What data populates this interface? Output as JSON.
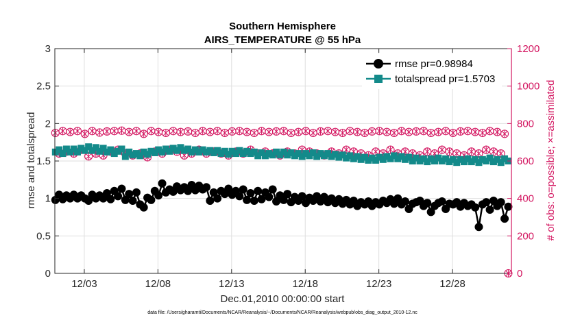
{
  "colors": {
    "rmse": "#000000",
    "spread": "#138a8a",
    "obs": "#d3145f",
    "axis": "#262626",
    "grid": "#dedede"
  },
  "chart_data": {
    "type": "line",
    "title_line1": "Southern Hemisphere",
    "title_line2": "AIRS_TEMPERATURE @ 55 hPa",
    "xlabel": "Dec.01,2010 00:00:00 start",
    "ylabel_left": "rmse and totalspread",
    "ylabel_right": "# of obs: o=possible; ×=assimilated",
    "footnote": "data file: /Users/gharamti/Documents/NCAR/Reanalysis/~/Documents/NCAR/Reanalysis/webpub/obs_diag_output_2010-12.nc",
    "xlim": [
      1,
      32
    ],
    "ylim_left": [
      0,
      3
    ],
    "ylim_right": [
      0,
      1200
    ],
    "x_ticks": [
      3,
      8,
      13,
      18,
      23,
      28
    ],
    "x_tick_labels": [
      "12/03",
      "12/08",
      "12/13",
      "12/18",
      "12/23",
      "12/28"
    ],
    "y_ticks_left": [
      0,
      0.5,
      1,
      1.5,
      2,
      2.5,
      3
    ],
    "y_tick_labels_left": [
      "0",
      "0.5",
      "1",
      "1.5",
      "2",
      "2.5",
      "3"
    ],
    "y_ticks_right": [
      0,
      200,
      400,
      600,
      800,
      1000,
      1200
    ],
    "y_tick_labels_right": [
      "0",
      "200",
      "400",
      "600",
      "800",
      "1000",
      "1200"
    ],
    "series": [
      {
        "name": "rmse",
        "label": "rmse pr=0.98984",
        "values": [
          0.98,
          1.05,
          0.99,
          1.04,
          1.0,
          1.05,
          1.0,
          1.04,
          1.0,
          0.97,
          1.05,
          1.0,
          1.04,
          1.0,
          1.07,
          0.99,
          1.1,
          1.03,
          1.13,
          0.98,
          1.06,
          0.97,
          1.08,
          0.92,
          0.88,
          1.01,
          0.98,
          1.1,
          1.04,
          1.2,
          1.08,
          1.12,
          1.09,
          1.16,
          1.11,
          1.15,
          1.1,
          1.18,
          1.11,
          1.17,
          1.12,
          1.15,
          0.97,
          1.08,
          1.0,
          1.1,
          1.06,
          1.13,
          1.05,
          1.1,
          1.03,
          1.12,
          0.98,
          1.07,
          0.97,
          1.1,
          0.99,
          1.08,
          1.02,
          1.12,
          0.96,
          1.04,
          0.98,
          1.06,
          0.95,
          1.02,
          0.97,
          1.03,
          0.94,
          1.01,
          0.97,
          1.03,
          0.96,
          1.02,
          0.95,
          1.0,
          0.94,
          0.99,
          0.93,
          0.98,
          0.92,
          0.97,
          0.9,
          0.95,
          0.92,
          0.96,
          0.9,
          0.95,
          0.92,
          0.97,
          0.94,
          0.99,
          0.93,
          1.0,
          0.92,
          0.96,
          0.86,
          0.93,
          0.95,
          0.97,
          0.9,
          0.94,
          0.82,
          0.9,
          0.94,
          0.96,
          0.86,
          0.93,
          0.92,
          0.95,
          0.89,
          0.94,
          0.9,
          0.92,
          0.88,
          0.62,
          0.92,
          0.95,
          0.85,
          0.97,
          0.9,
          0.95,
          0.73,
          0.89
        ]
      },
      {
        "name": "totalspread",
        "label": "totalspread pr=1.5703",
        "values": [
          1.62,
          1.65,
          1.6,
          1.66,
          1.62,
          1.66,
          1.62,
          1.67,
          1.64,
          1.69,
          1.64,
          1.68,
          1.63,
          1.67,
          1.62,
          1.65,
          1.6,
          1.63,
          1.66,
          1.56,
          1.62,
          1.58,
          1.6,
          1.57,
          1.62,
          1.59,
          1.63,
          1.61,
          1.65,
          1.62,
          1.66,
          1.63,
          1.67,
          1.64,
          1.68,
          1.64,
          1.66,
          1.62,
          1.65,
          1.62,
          1.65,
          1.62,
          1.64,
          1.61,
          1.64,
          1.6,
          1.63,
          1.59,
          1.63,
          1.6,
          1.64,
          1.6,
          1.63,
          1.6,
          1.62,
          1.57,
          1.61,
          1.57,
          1.6,
          1.58,
          1.62,
          1.58,
          1.62,
          1.58,
          1.61,
          1.57,
          1.6,
          1.56,
          1.6,
          1.57,
          1.61,
          1.56,
          1.6,
          1.57,
          1.6,
          1.56,
          1.59,
          1.55,
          1.58,
          1.54,
          1.57,
          1.53,
          1.56,
          1.52,
          1.55,
          1.51,
          1.54,
          1.51,
          1.55,
          1.52,
          1.56,
          1.53,
          1.57,
          1.53,
          1.56,
          1.52,
          1.55,
          1.5,
          1.54,
          1.5,
          1.53,
          1.49,
          1.53,
          1.5,
          1.54,
          1.5,
          1.53,
          1.49,
          1.52,
          1.48,
          1.52,
          1.49,
          1.53,
          1.49,
          1.52,
          1.48,
          1.52,
          1.5,
          1.54,
          1.49,
          1.52,
          1.48,
          1.53,
          1.5
        ]
      },
      {
        "name": "possible_obs",
        "label": "o=possible",
        "values": [
          750,
          640,
          760,
          650,
          755,
          640,
          760,
          660,
          745,
          625,
          760,
          640,
          752,
          630,
          758,
          650,
          760,
          660,
          762,
          640,
          755,
          630,
          760,
          640,
          745,
          620,
          760,
          650,
          755,
          640,
          750,
          660,
          760,
          650,
          755,
          630,
          758,
          640,
          750,
          660,
          760,
          640,
          755,
          650,
          760,
          640,
          750,
          630,
          758,
          650,
          760,
          640,
          755,
          660,
          750,
          640,
          760,
          650,
          755,
          640,
          758,
          630,
          760,
          650,
          750,
          640,
          755,
          660,
          760,
          650,
          750,
          640,
          758,
          630,
          760,
          650,
          755,
          640,
          750,
          660,
          760,
          650,
          755,
          640,
          750,
          630,
          758,
          650,
          760,
          640,
          755,
          660,
          750,
          640,
          760,
          650,
          755,
          640,
          758,
          630,
          760,
          650,
          750,
          640,
          755,
          660,
          760,
          650,
          750,
          640,
          758,
          630,
          760,
          650,
          755,
          640,
          750,
          660,
          760,
          650,
          755,
          640,
          745,
          0
        ]
      }
    ],
    "legend_position": "top-right"
  }
}
